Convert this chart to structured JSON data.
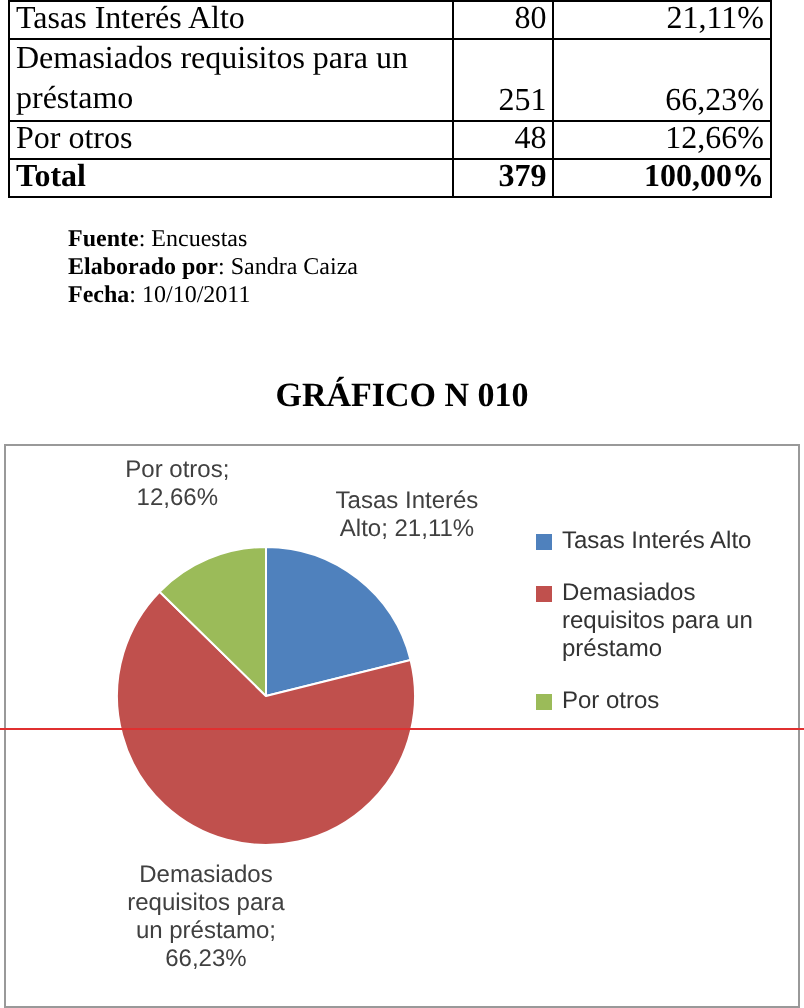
{
  "chart_data": {
    "type": "pie",
    "title": "GRÁFICO N 010",
    "categories": [
      "Tasas Interés Alto",
      "Demasiados requisitos para un préstamo",
      "Por otros"
    ],
    "values": [
      21.11,
      66.23,
      12.66
    ],
    "value_labels": [
      "Tasas Interés Alto; 21,11%",
      "Demasiados requisitos para un préstamo; 66,23%",
      "Por otros; 12,66%"
    ],
    "colors": [
      "#4f81bd",
      "#c0504d",
      "#9bbb59"
    ],
    "legend": "right",
    "annotations": [
      "Tasas Interés Alto",
      "80",
      "21,11%",
      "Demasiados requisitos para un préstamo",
      "251",
      "66,23%",
      "Por otros",
      "48",
      "12,66%",
      "Total",
      "379",
      "100,00%",
      "Fuente: Encuestas",
      "Elaborado por: Sandra Caiza",
      "Fecha: 10/10/2011"
    ]
  }
}
